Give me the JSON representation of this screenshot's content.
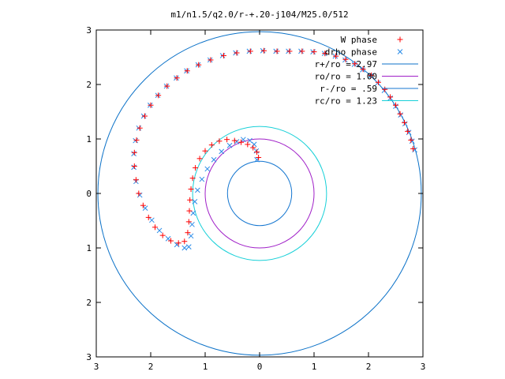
{
  "chart_data": {
    "type": "scatter",
    "title": "m1/n1.5/q2.0/r-+.20-j104/M25.0/512",
    "xlim": [
      -3,
      3
    ],
    "ylim": [
      -3,
      3
    ],
    "x_tick_values": [
      -3,
      -2,
      -1,
      0,
      1,
      2,
      3
    ],
    "y_tick_values": [
      -3,
      -2,
      -1,
      0,
      1,
      2,
      3
    ],
    "x_tick_labels": [
      "3",
      "2",
      "1",
      "0",
      "1",
      "2",
      "3"
    ],
    "y_tick_labels": [
      "3",
      "2",
      "1",
      "0",
      "1",
      "2",
      "3"
    ],
    "grid": false,
    "legend_position": "top-right",
    "series": [
      {
        "name": "W phase",
        "kind": "points",
        "marker": "plus",
        "color": "#ff0000",
        "x": [
          2.82,
          2.78,
          2.72,
          2.66,
          2.58,
          2.5,
          2.4,
          2.3,
          2.18,
          2.05,
          1.9,
          1.75,
          1.58,
          1.4,
          1.2,
          1.0,
          0.78,
          0.55,
          0.32,
          0.08,
          -0.17,
          -0.42,
          -0.66,
          -0.9,
          -1.12,
          -1.33,
          -1.52,
          -1.7,
          -1.86,
          -2.0,
          -2.11,
          -2.2,
          -2.26,
          -2.3,
          -2.3,
          -2.27,
          -2.22,
          -2.14,
          -2.04,
          -1.92,
          -1.78,
          -1.63,
          -1.49,
          -1.38,
          -1.32,
          -1.3,
          -1.29,
          -1.28,
          -1.26,
          -1.23,
          -1.18,
          -1.1,
          -1.0,
          -0.88,
          -0.74,
          -0.6,
          -0.46,
          -0.34,
          -0.22,
          -0.12,
          -0.05,
          -0.02
        ],
        "y": [
          0.82,
          0.98,
          1.14,
          1.3,
          1.46,
          1.62,
          1.77,
          1.91,
          2.04,
          2.17,
          2.28,
          2.38,
          2.46,
          2.52,
          2.57,
          2.6,
          2.61,
          2.61,
          2.61,
          2.62,
          2.61,
          2.58,
          2.53,
          2.45,
          2.36,
          2.25,
          2.12,
          1.97,
          1.8,
          1.62,
          1.42,
          1.2,
          0.98,
          0.75,
          0.5,
          0.25,
          0.0,
          -0.22,
          -0.44,
          -0.62,
          -0.77,
          -0.87,
          -0.91,
          -0.88,
          -0.72,
          -0.52,
          -0.32,
          -0.12,
          0.08,
          0.28,
          0.47,
          0.64,
          0.78,
          0.89,
          0.96,
          0.99,
          0.97,
          0.94,
          0.9,
          0.84,
          0.76,
          0.66
        ]
      },
      {
        "name": "drho phase",
        "kind": "points",
        "marker": "cross",
        "color": "#2b8ce8",
        "x": [
          2.85,
          2.8,
          2.74,
          2.67,
          2.59,
          2.5,
          2.4,
          2.29,
          2.17,
          2.04,
          1.89,
          1.74,
          1.57,
          1.39,
          1.19,
          0.98,
          0.76,
          0.53,
          0.3,
          0.06,
          -0.19,
          -0.44,
          -0.68,
          -0.91,
          -1.13,
          -1.34,
          -1.53,
          -1.71,
          -1.87,
          -2.01,
          -2.13,
          -2.22,
          -2.28,
          -2.31,
          -2.31,
          -2.27,
          -2.2,
          -2.1,
          -1.98,
          -1.84,
          -1.68,
          -1.52,
          -1.38,
          -1.3,
          -1.26,
          -1.24,
          -1.22,
          -1.19,
          -1.14,
          -1.06,
          -0.96,
          -0.84,
          -0.7,
          -0.55,
          -0.42,
          -0.3,
          -0.18,
          -0.1,
          -0.06,
          -0.05
        ],
        "y": [
          0.8,
          0.96,
          1.12,
          1.28,
          1.44,
          1.6,
          1.75,
          1.89,
          2.03,
          2.16,
          2.27,
          2.37,
          2.45,
          2.52,
          2.57,
          2.6,
          2.61,
          2.61,
          2.61,
          2.62,
          2.61,
          2.58,
          2.53,
          2.45,
          2.36,
          2.25,
          2.12,
          1.97,
          1.8,
          1.62,
          1.42,
          1.2,
          0.97,
          0.73,
          0.48,
          0.22,
          -0.03,
          -0.27,
          -0.49,
          -0.68,
          -0.83,
          -0.94,
          -1.0,
          -0.98,
          -0.78,
          -0.57,
          -0.36,
          -0.15,
          0.06,
          0.26,
          0.45,
          0.62,
          0.77,
          0.88,
          0.95,
          0.99,
          0.97,
          0.9,
          0.78,
          0.62
        ]
      },
      {
        "name": "r+/ro = 2.97",
        "kind": "circle",
        "radius": 2.97,
        "color": "#0c72c8"
      },
      {
        "name": "ro/ro = 1.00",
        "kind": "circle",
        "radius": 1.0,
        "color": "#a020c8"
      },
      {
        "name": "r-/ro = .59",
        "kind": "circle",
        "radius": 0.59,
        "color": "#1476d0"
      },
      {
        "name": "rc/ro = 1.23",
        "kind": "circle",
        "radius": 1.23,
        "color": "#18d0d8"
      }
    ]
  }
}
